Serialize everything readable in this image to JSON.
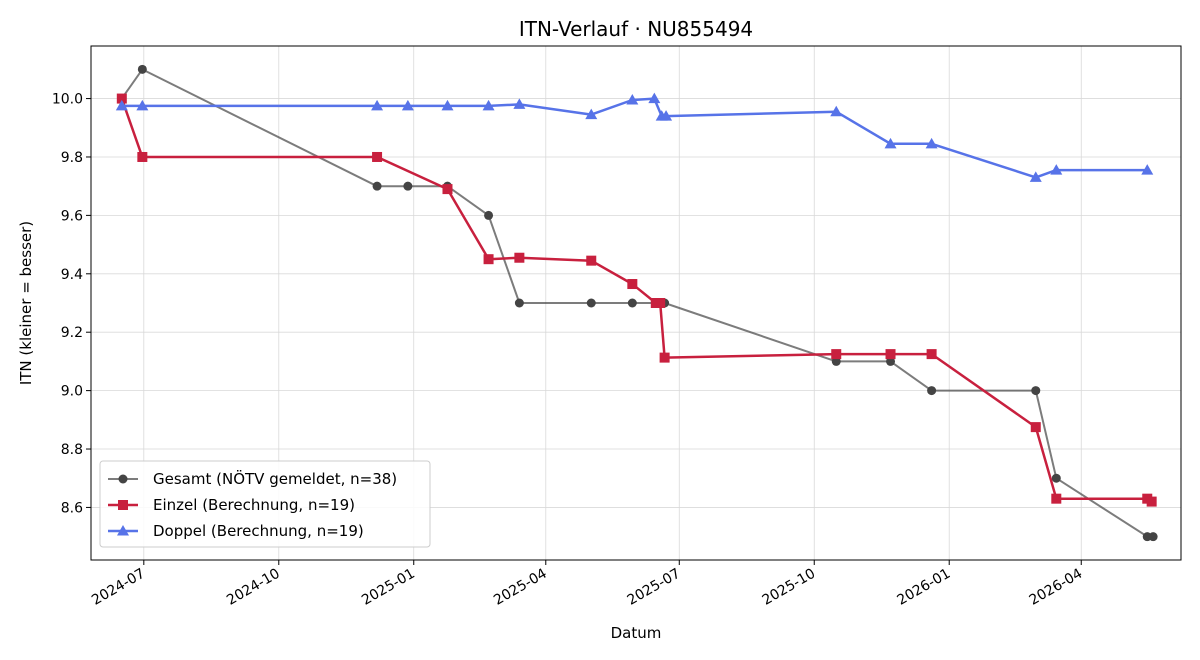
{
  "chart_data": {
    "type": "line",
    "title": "ITN-Verlauf · NU855494",
    "xlabel": "Datum",
    "ylabel": "ITN  (kleiner = besser)",
    "ylim": [
      8.42,
      10.18
    ],
    "xlim": [
      "2024-05-26",
      "2026-06-08"
    ],
    "y_ticks": [
      8.6,
      8.8,
      9.0,
      9.2,
      9.4,
      9.6,
      9.8,
      10.0
    ],
    "y_tick_labels": [
      "8.6",
      "8.8",
      "9.0",
      "9.2",
      "9.4",
      "9.6",
      "9.8",
      "10.0"
    ],
    "x_ticks": [
      "2024-07-01",
      "2024-10-01",
      "2025-01-01",
      "2025-04-01",
      "2025-07-01",
      "2025-10-01",
      "2026-01-01",
      "2026-04-01"
    ],
    "x_tick_labels": [
      "2024-07",
      "2024-10",
      "2025-01",
      "2025-04",
      "2025-07",
      "2025-10",
      "2026-01",
      "2026-04"
    ],
    "grid": true,
    "legend_position": "lower-left",
    "series": [
      {
        "name": "Gesamt (NÖTV gemeldet, n=38)",
        "color": "#444444",
        "marker": "circle",
        "points": [
          [
            "2024-06-16",
            10.0
          ],
          [
            "2024-06-30",
            10.1
          ],
          [
            "2024-12-07",
            9.7
          ],
          [
            "2024-12-28",
            9.7
          ],
          [
            "2025-01-24",
            9.7
          ],
          [
            "2025-02-21",
            9.6
          ],
          [
            "2025-03-14",
            9.3
          ],
          [
            "2025-05-02",
            9.3
          ],
          [
            "2025-05-30",
            9.3
          ],
          [
            "2025-06-16",
            9.3
          ],
          [
            "2025-06-21",
            9.3
          ],
          [
            "2025-10-16",
            9.1
          ],
          [
            "2025-11-22",
            9.1
          ],
          [
            "2025-12-20",
            9.0
          ],
          [
            "2026-03-01",
            9.0
          ],
          [
            "2026-03-15",
            8.7
          ],
          [
            "2026-05-16",
            8.5
          ],
          [
            "2026-05-20",
            8.5
          ]
        ]
      },
      {
        "name": "Einzel (Berechnung, n=19)",
        "color": "#c8203e",
        "marker": "square",
        "points": [
          [
            "2024-06-16",
            10.0
          ],
          [
            "2024-06-30",
            9.8
          ],
          [
            "2024-12-07",
            9.8
          ],
          [
            "2025-01-24",
            9.69
          ],
          [
            "2025-02-21",
            9.45
          ],
          [
            "2025-03-14",
            9.455
          ],
          [
            "2025-05-02",
            9.445
          ],
          [
            "2025-05-30",
            9.365
          ],
          [
            "2025-06-15",
            9.3
          ],
          [
            "2025-06-18",
            9.3
          ],
          [
            "2025-06-21",
            9.113
          ],
          [
            "2025-10-16",
            9.125
          ],
          [
            "2025-11-22",
            9.125
          ],
          [
            "2025-12-20",
            9.125
          ],
          [
            "2026-03-01",
            8.875
          ],
          [
            "2026-03-15",
            8.63
          ],
          [
            "2026-05-16",
            8.63
          ],
          [
            "2026-05-19",
            8.62
          ]
        ]
      },
      {
        "name": "Doppel (Berechnung, n=19)",
        "color": "#5773e8",
        "marker": "triangle",
        "points": [
          [
            "2024-06-16",
            9.975
          ],
          [
            "2024-06-30",
            9.975
          ],
          [
            "2024-12-07",
            9.975
          ],
          [
            "2024-12-28",
            9.975
          ],
          [
            "2025-01-24",
            9.975
          ],
          [
            "2025-02-21",
            9.975
          ],
          [
            "2025-03-14",
            9.98
          ],
          [
            "2025-05-02",
            9.945
          ],
          [
            "2025-05-30",
            9.995
          ],
          [
            "2025-06-14",
            10.0
          ],
          [
            "2025-06-19",
            9.94
          ],
          [
            "2025-06-22",
            9.94
          ],
          [
            "2025-10-16",
            9.955
          ],
          [
            "2025-11-22",
            9.845
          ],
          [
            "2025-12-20",
            9.845
          ],
          [
            "2026-03-01",
            9.73
          ],
          [
            "2026-03-15",
            9.755
          ],
          [
            "2026-05-16",
            9.755
          ]
        ]
      }
    ]
  }
}
